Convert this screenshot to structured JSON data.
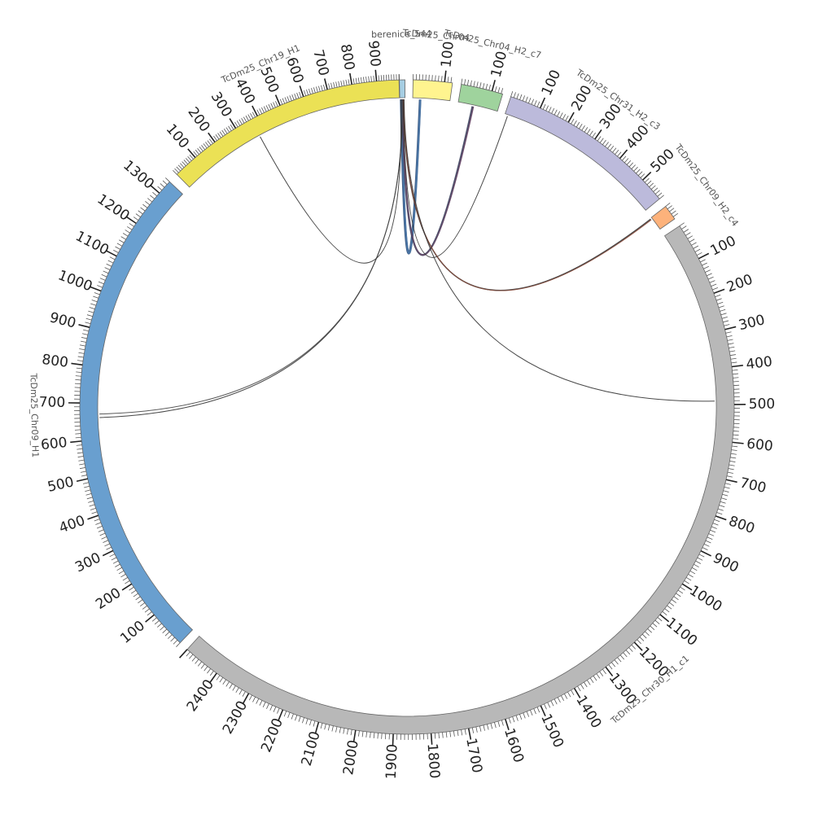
{
  "chart_data": {
    "type": "chord",
    "title": "",
    "segments": [
      {
        "name": "berenice_544",
        "length": 8,
        "start_deg": -1.34,
        "end_deg": -0.36,
        "color": "#a6cee3"
      },
      {
        "name": "TcDm25_Chr04",
        "length": 125,
        "start_deg": 1.06,
        "end_deg": 7.99,
        "color": "#fff48f"
      },
      {
        "name": "TcDm25_Chr04_H2_c7",
        "length": 135,
        "start_deg": 9.55,
        "end_deg": 17.0,
        "color": "#9fd39d"
      },
      {
        "name": "TcDm25_Chr31_H2_c3",
        "length": 580,
        "start_deg": 18.5,
        "end_deg": 50.5,
        "color": "#bcbadb"
      },
      {
        "name": "TcDm25_Chr09_H2_c4",
        "length": 48,
        "start_deg": 52.2,
        "end_deg": 54.9,
        "color": "#fdb27b"
      },
      {
        "name": "TcDm25_Chr30_H1_c1",
        "length": 2500,
        "start_deg": 56.4,
        "end_deg": 222.2,
        "color": "#b8b8b8"
      },
      {
        "name": "TcDm25_Chr09_H1",
        "length": 1340,
        "start_deg": 223.9,
        "end_deg": 313.5,
        "color": "#699fcf"
      },
      {
        "name": "TcDm25_Chr19_H1",
        "length": 990,
        "start_deg": 315.3,
        "end_deg": 358.6,
        "color": "#ebe155"
      }
    ],
    "segment_labels": [
      {
        "text": "berenice_544",
        "deg": -0.85
      },
      {
        "text": "TcDm25_Chr04",
        "deg": 4.5
      },
      {
        "text": "TcDm25_Chr04_H2_c7",
        "deg": 13.3
      },
      {
        "text": "TcDm25_Chr31_H2_c3",
        "deg": 34.5
      },
      {
        "text": "TcDm25_Chr09_H2_c4",
        "deg": 53.5
      },
      {
        "text": "TcDm25_Chr30_H1_c1",
        "deg": 139.3
      },
      {
        "text": "TcDm25_Chr09_H1",
        "deg": 268.7
      },
      {
        "text": "TcDm25_Chr19_H1",
        "deg": 336.9
      }
    ],
    "tick_labels": {
      "TcDm25_Chr04": [
        100
      ],
      "TcDm25_Chr04_H2_c7": [
        100
      ],
      "TcDm25_Chr31_H2_c3": [
        100,
        200,
        300,
        400,
        500
      ],
      "TcDm25_Chr30_H1_c1": [
        100,
        200,
        300,
        400,
        500,
        600,
        700,
        800,
        900,
        1000,
        1100,
        1200,
        1300,
        1400,
        1500,
        1600,
        1700,
        1800,
        1900,
        2000,
        2100,
        2200,
        2300,
        2400
      ],
      "TcDm25_Chr09_H1": [
        100,
        200,
        300,
        400,
        500,
        600,
        700,
        800,
        900,
        1000,
        1100,
        1200,
        1300
      ],
      "TcDm25_Chr19_H1": [
        100,
        200,
        300,
        400,
        500,
        600,
        700,
        800,
        900
      ]
    },
    "links": [
      {
        "source": "berenice_544",
        "source_pos": 2,
        "target": "TcDm25_Chr04",
        "target_pos": 25,
        "color": "#2a4d7a",
        "width": 3
      },
      {
        "source": "berenice_544",
        "source_pos": 3,
        "target": "TcDm25_Chr04",
        "target_pos": 26,
        "color": "#4b78a8",
        "width": 2
      },
      {
        "source": "berenice_544",
        "source_pos": 4,
        "target": "TcDm25_Chr04_H2_c7",
        "target_pos": 50,
        "color": "#3a3f5c",
        "width": 2.5
      },
      {
        "source": "berenice_544",
        "source_pos": 4.5,
        "target": "TcDm25_Chr04_H2_c7",
        "target_pos": 53,
        "color": "#6b4a6a",
        "width": 1.5
      },
      {
        "source": "berenice_544",
        "source_pos": 5,
        "target": "TcDm25_Chr31_H2_c3",
        "target_pos": 10,
        "color": "#333333",
        "width": 1
      },
      {
        "source": "berenice_544",
        "source_pos": 5.5,
        "target": "TcDm25_Chr09_H2_c4",
        "target_pos": 3,
        "color": "#333333",
        "width": 1.5
      },
      {
        "source": "berenice_544",
        "source_pos": 6,
        "target": "TcDm25_Chr09_H2_c4",
        "target_pos": 6,
        "color": "#8a4a3a",
        "width": 1
      },
      {
        "source": "berenice_544",
        "source_pos": 6.5,
        "target": "TcDm25_Chr30_H1_c1",
        "target_pos": 490,
        "color": "#333333",
        "width": 1
      },
      {
        "source": "berenice_544",
        "source_pos": 3.5,
        "target": "TcDm25_Chr09_H1",
        "target_pos": 660,
        "color": "#333333",
        "width": 1
      },
      {
        "source": "berenice_544",
        "source_pos": 3.8,
        "target": "TcDm25_Chr09_H1",
        "target_pos": 670,
        "color": "#444444",
        "width": 1
      },
      {
        "source": "berenice_544",
        "source_pos": 1.5,
        "target": "TcDm25_Chr19_H1",
        "target_pos": 370,
        "color": "#333333",
        "width": 1
      }
    ]
  }
}
